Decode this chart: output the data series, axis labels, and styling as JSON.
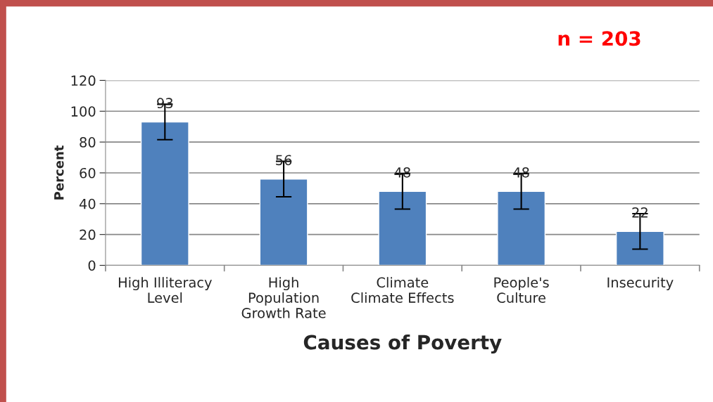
{
  "chart_data": {
    "type": "bar",
    "xlabel": "Causes of Poverty",
    "ylabel": "Percent",
    "categories": [
      "High Illiteracy\nLevel",
      "High\nPopulation\nGrowth Rate",
      "Climate\nClimate Effects",
      "People's\nCulture",
      "Insecurity"
    ],
    "series": [
      {
        "color": "#4f81bd",
        "values": [
          93,
          56,
          48,
          48,
          22
        ],
        "errors": [
          11.5,
          11.5,
          11.5,
          11.5,
          11.5
        ]
      }
    ],
    "data_labels": true,
    "ylim": [
      0,
      120
    ],
    "yticks": [
      0,
      20,
      40,
      60,
      80,
      100,
      120
    ],
    "grid": "y",
    "legend": false,
    "annotations": [
      "n = 203"
    ]
  }
}
